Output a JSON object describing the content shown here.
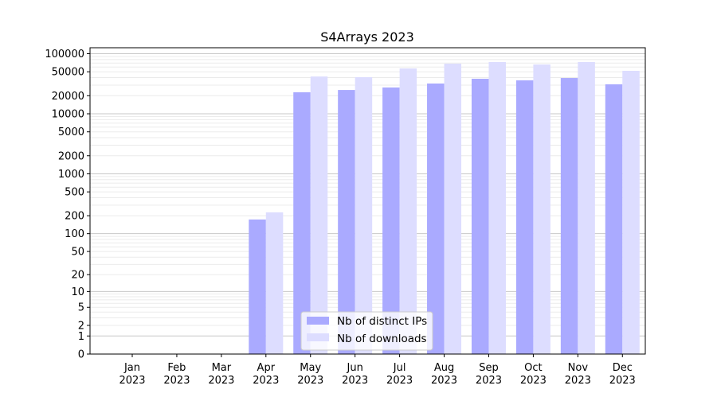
{
  "chart_data": {
    "type": "bar",
    "title": "S4Arrays 2023",
    "xlabel": "",
    "ylabel": "",
    "yscale": "log10(1+y)",
    "ylim": [
      0,
      120000
    ],
    "grid": true,
    "legend_placement": "lower-center",
    "categories": [
      "Jan\n2023",
      "Feb\n2023",
      "Mar\n2023",
      "Apr\n2023",
      "May\n2023",
      "Jun\n2023",
      "Jul\n2023",
      "Aug\n2023",
      "Sep\n2023",
      "Oct\n2023",
      "Nov\n2023",
      "Dec\n2023"
    ],
    "yticks": [
      0,
      1,
      2,
      5,
      10,
      20,
      50,
      100,
      200,
      500,
      1000,
      2000,
      5000,
      10000,
      20000,
      50000,
      100000
    ],
    "series": [
      {
        "name": "Nb of distinct IPs",
        "color": "#aaaaff",
        "values": [
          0,
          0,
          0,
          173,
          22800,
          24900,
          27400,
          31900,
          38300,
          36000,
          39400,
          30900
        ]
      },
      {
        "name": "Nb of downloads",
        "color": "#ddddff",
        "values": [
          0,
          0,
          0,
          228,
          41700,
          40700,
          56900,
          68300,
          72600,
          66200,
          72600,
          51900
        ]
      }
    ]
  }
}
